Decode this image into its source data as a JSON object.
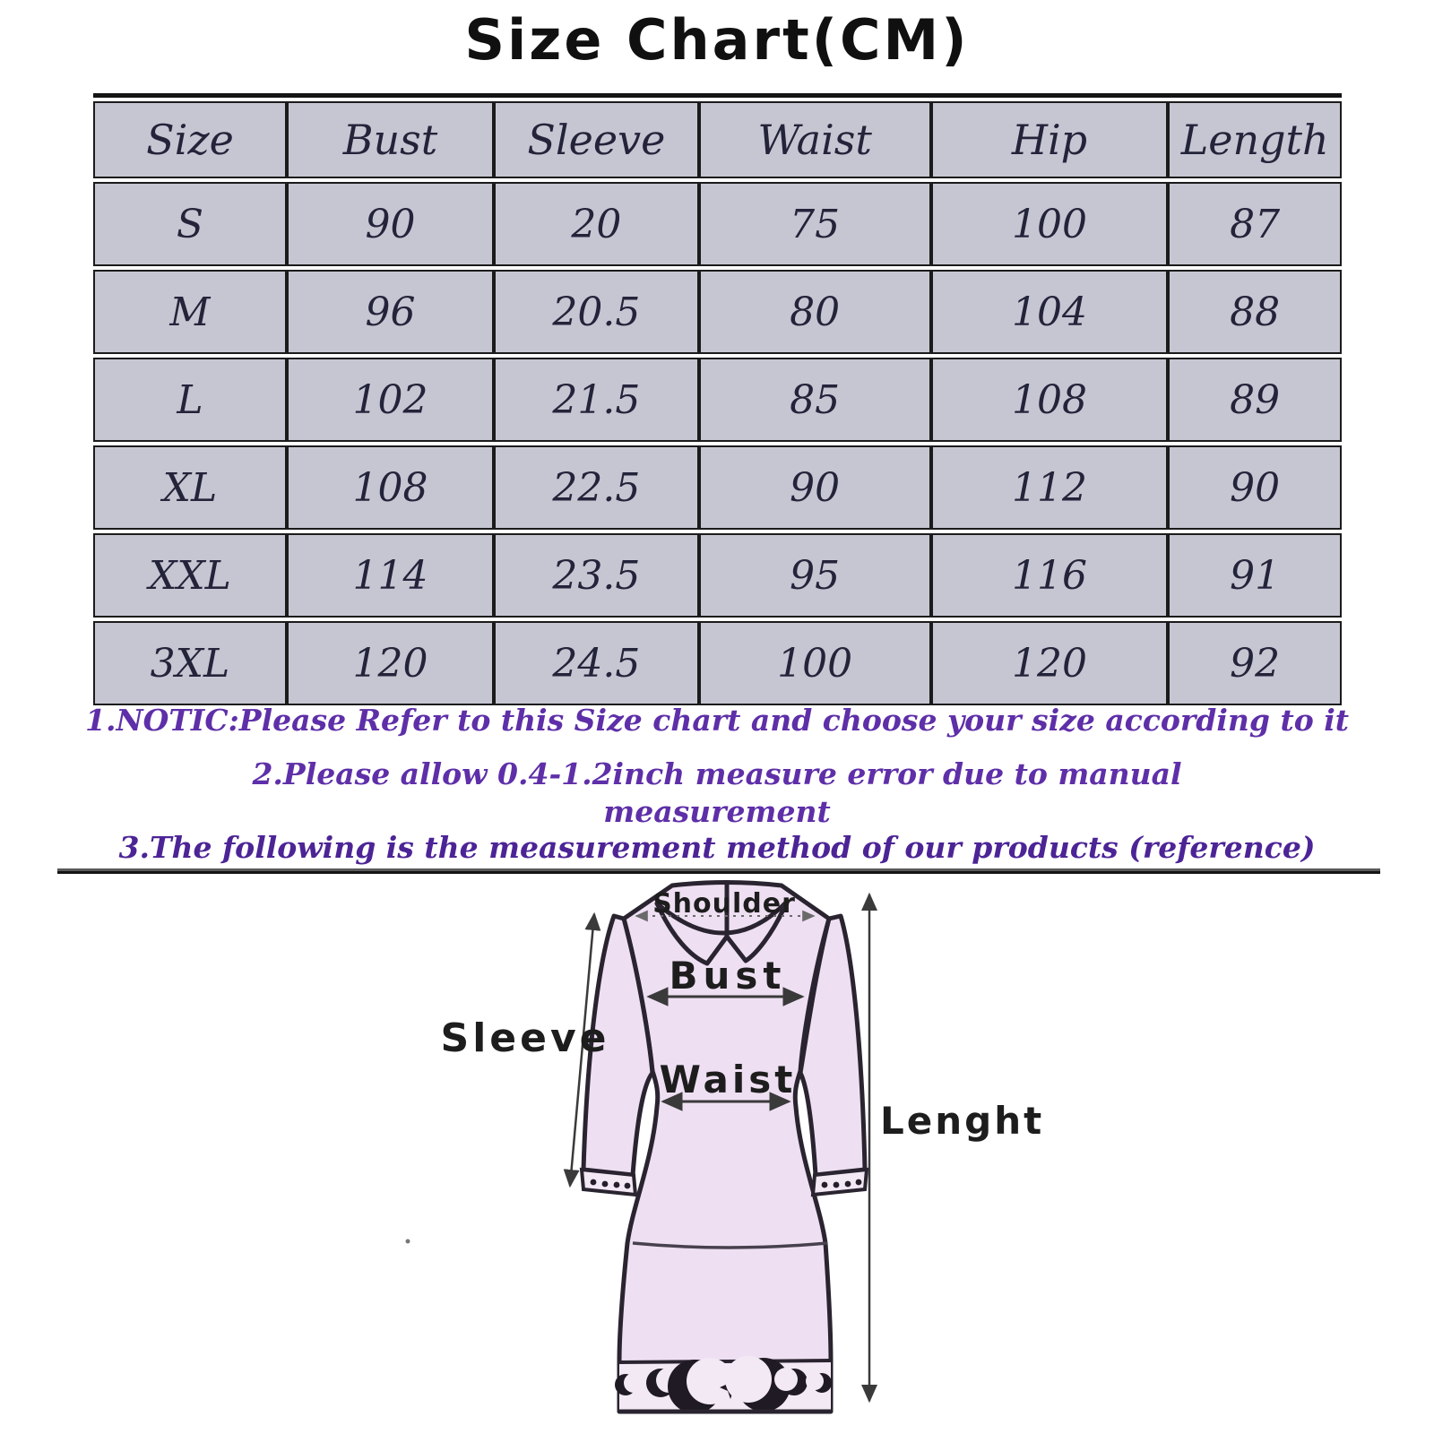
{
  "title": "Size Chart(CM)",
  "table": {
    "headers": [
      "Size",
      "Bust",
      "Sleeve",
      "Waist",
      "Hip",
      "Length"
    ],
    "rows": [
      [
        "S",
        "90",
        "20",
        "75",
        "100",
        "87"
      ],
      [
        "M",
        "96",
        "20.5",
        "80",
        "104",
        "88"
      ],
      [
        "L",
        "102",
        "21.5",
        "85",
        "108",
        "89"
      ],
      [
        "XL",
        "108",
        "22.5",
        "90",
        "112",
        "90"
      ],
      [
        "XXL",
        "114",
        "23.5",
        "95",
        "116",
        "91"
      ],
      [
        "3XL",
        "120",
        "24.5",
        "100",
        "120",
        "92"
      ]
    ]
  },
  "notes": {
    "note1": "1.NOTIC:Please Refer to this Size chart and choose your size according to it",
    "note2": "2.Please allow 0.4-1.2inch measure error due to manual",
    "note2_cont": "measurement",
    "note3": "3.The following is the measurement method of our products (reference)"
  },
  "diagram": {
    "labels": {
      "shoulder": "Shoulder",
      "bust": "Bust",
      "waist": "Waist",
      "sleeve": "Sleeve",
      "length": "Lenght"
    }
  },
  "colors": {
    "note_purple": "#5e2fa8",
    "note3_purple": "#4c2496",
    "table_cell_bg": "#c6c6d3",
    "table_border": "#1b1b1b",
    "dress_fill": "#eee0f2",
    "dress_band_fill": "#f3e9f5",
    "dress_outline": "#2a2430"
  }
}
